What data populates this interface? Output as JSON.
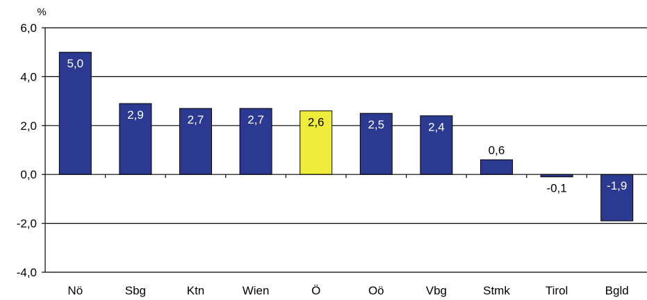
{
  "chart_data": {
    "type": "bar",
    "unit_label": "%",
    "categories": [
      "Nö",
      "Sbg",
      "Ktn",
      "Wien",
      "Ö",
      "Oö",
      "Vbg",
      "Stmk",
      "Tirol",
      "Bgld"
    ],
    "values": [
      5.0,
      2.9,
      2.7,
      2.7,
      2.6,
      2.5,
      2.4,
      0.6,
      -0.1,
      -1.9
    ],
    "value_labels": [
      "5,0",
      "2,9",
      "2,7",
      "2,7",
      "2,6",
      "2,5",
      "2,4",
      "0,6",
      "-0,1",
      "-1,9"
    ],
    "highlight_category": "Ö",
    "ylim": [
      -4.0,
      6.0
    ],
    "yticks": [
      -4.0,
      -2.0,
      0.0,
      2.0,
      4.0,
      6.0
    ],
    "ytick_labels": [
      "-4,0",
      "-2,0",
      "0,0",
      "2,0",
      "4,0",
      "6,0"
    ],
    "grid": "horizontal",
    "legend": "none",
    "colors": {
      "bar": "#2b3990",
      "highlight": "#f0ec3a",
      "bar_stroke": "#000000",
      "gridline": "#000000",
      "label_inside": "#ffffff",
      "label_outside": "#000000"
    }
  }
}
